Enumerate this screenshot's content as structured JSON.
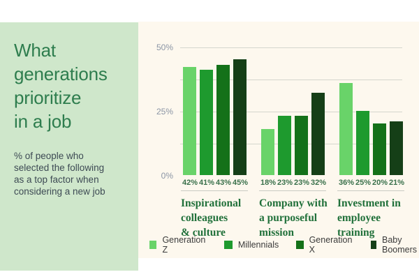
{
  "palette": {
    "page-bg": "#ffffff",
    "left-panel-bg": "#cfe7cb",
    "chart-panel-bg": "#fdf8ee",
    "title-color": "#2e7d4e",
    "subtitle-color": "#3d4a54",
    "axis-tick-color": "#8b95a5",
    "gridline-color": "#d4d6cd",
    "value-label-color": "#39704a",
    "separator-color": "#c9cbc3",
    "category-label-color": "#20703a",
    "legend-label-color": "#3b3b3b"
  },
  "left_panel": {
    "title": "What\ngenerations\nprioritize\nin a job",
    "subtitle": "% of people who\nselected the following\nas a top factor when\nconsidering a new job"
  },
  "chart_data": {
    "type": "bar",
    "title": "What generations prioritize in a job",
    "subtitle": "% of people who selected the following as a top factor when considering a new job",
    "ylabel": "",
    "xlabel": "",
    "ylim": [
      0,
      50
    ],
    "grid": true,
    "legend_position": "bottom",
    "yticks": [
      {
        "label": "50%",
        "value": 50
      },
      {
        "label": "25%",
        "value": 25
      },
      {
        "label": "0%",
        "value": 0
      }
    ],
    "gridline_values": [
      50,
      37.5,
      25,
      12.5
    ],
    "value_label_suffix": "%",
    "categories": [
      {
        "name": "Inspirational colleagues & culture",
        "display": "Inspirational\ncolleagues\n& culture"
      },
      {
        "name": "Company with a purposeful mission",
        "display": "Company with\na purposeful\nmission"
      },
      {
        "name": "Investment in employee training",
        "display": "Investment in\nemployee\ntraining"
      }
    ],
    "series": [
      {
        "name": "Generation Z",
        "color": "#69d369",
        "values": [
          42,
          18,
          36
        ]
      },
      {
        "name": "Millennials",
        "color": "#1e9a2e",
        "values": [
          41,
          23,
          25
        ]
      },
      {
        "name": "Generation X",
        "color": "#147119",
        "values": [
          43,
          23,
          20
        ]
      },
      {
        "name": "Baby Boomers",
        "color": "#153f17",
        "values": [
          45,
          32,
          21
        ]
      }
    ]
  }
}
